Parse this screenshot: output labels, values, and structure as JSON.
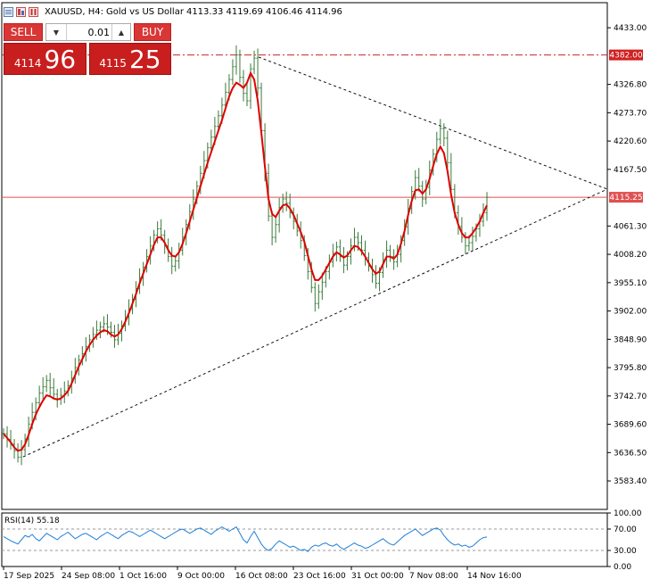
{
  "header": {
    "symbol": "XAUUSD, H4:",
    "description": "Gold vs US Dollar",
    "ohlc": "4113.33 4119.69 4106.46 4114.96"
  },
  "trade_panel": {
    "sell_label": "SELL",
    "buy_label": "BUY",
    "lot": "0.01",
    "sell_price_small": "4114",
    "sell_price_big": "96",
    "buy_price_small": "4115",
    "buy_price_big": "25"
  },
  "colors": {
    "candle": "#3a7a3a",
    "ma": "#e00000",
    "rsi": "#1e7fd9",
    "level": "#d02020",
    "sell_button": "#d93636",
    "price_box": "#c91e1e"
  },
  "chart_data": [
    {
      "type": "line",
      "title": "XAUUSD, H4: Gold vs US Dollar",
      "ylim": [
        3530,
        4480
      ],
      "y_ticks": [
        "4433.00",
        "4326.80",
        "4273.70",
        "4220.60",
        "4167.50",
        "4061.30",
        "4008.20",
        "3955.10",
        "3902.00",
        "3848.90",
        "3795.80",
        "3742.70",
        "3689.60",
        "3636.50",
        "3583.40"
      ],
      "x_ticks": [
        "17 Sep 2025",
        "24 Sep 08:00",
        "1 Oct 16:00",
        "9 Oct 00:00",
        "16 Oct 08:00",
        "23 Oct 16:00",
        "31 Oct 00:00",
        "7 Nov 08:00",
        "14 Nov 16:00"
      ],
      "current_price_label": "4115.25",
      "current_price": 4115.25,
      "resistance_label": "4382.00",
      "resistance": 4382.0,
      "series": [
        {
          "name": "",
          "style": "ohlc-bars",
          "values": [
            3672,
            3661,
            3652,
            3640,
            3628,
            3642,
            3662,
            3690,
            3712,
            3730,
            3748,
            3760,
            3772,
            3758,
            3746,
            3736,
            3744,
            3752,
            3762,
            3776,
            3796,
            3810,
            3822,
            3835,
            3848,
            3858,
            3866,
            3872,
            3878,
            3872,
            3862,
            3848,
            3860,
            3874,
            3890,
            3906,
            3924,
            3944,
            3964,
            3984,
            4004,
            4024,
            4044,
            4056,
            4044,
            4024,
            4004,
            3986,
            3996,
            4016,
            4040,
            4064,
            4088,
            4112,
            4136,
            4160,
            4184,
            4208,
            4228,
            4248,
            4268,
            4288,
            4312,
            4336,
            4360,
            4382,
            4340,
            4310,
            4296,
            4356,
            4376,
            4320,
            4240,
            4160,
            4080,
            4040,
            4064,
            4096,
            4112,
            4104,
            4086,
            4070,
            4052,
            4034,
            4006,
            3976,
            3946,
            3916,
            3938,
            3956,
            3976,
            3994,
            4010,
            4022,
            4004,
            3988,
            4004,
            4024,
            4040,
            4030,
            4016,
            4002,
            3986,
            3970,
            3954,
            3974,
            3998,
            4016,
            4004,
            3994,
            4008,
            4034,
            4060,
            4094,
            4126,
            4152,
            4136,
            4112,
            4134,
            4166,
            4196,
            4224,
            4244,
            4226,
            4180,
            4130,
            4086,
            4060,
            4040,
            4024,
            4030,
            4042,
            4056,
            4070,
            4086,
            4115
          ]
        },
        {
          "name": "",
          "style": "moving-average",
          "values": [
            3672,
            3664,
            3656,
            3646,
            3640,
            3642,
            3652,
            3670,
            3690,
            3708,
            3722,
            3734,
            3744,
            3742,
            3738,
            3736,
            3738,
            3744,
            3752,
            3766,
            3782,
            3798,
            3812,
            3826,
            3838,
            3848,
            3856,
            3862,
            3866,
            3864,
            3858,
            3854,
            3858,
            3868,
            3882,
            3898,
            3916,
            3934,
            3954,
            3972,
            3990,
            4008,
            4026,
            4040,
            4040,
            4030,
            4016,
            4006,
            4004,
            4012,
            4028,
            4048,
            4070,
            4092,
            4114,
            4136,
            4158,
            4180,
            4200,
            4220,
            4240,
            4260,
            4282,
            4304,
            4320,
            4330,
            4326,
            4320,
            4330,
            4348,
            4336,
            4296,
            4236,
            4172,
            4112,
            4084,
            4078,
            4090,
            4100,
            4102,
            4094,
            4082,
            4066,
            4050,
            4032,
            4006,
            3980,
            3960,
            3960,
            3968,
            3980,
            3992,
            4004,
            4012,
            4008,
            4002,
            4006,
            4016,
            4024,
            4022,
            4014,
            4004,
            3992,
            3980,
            3972,
            3976,
            3990,
            4004,
            4004,
            4000,
            4008,
            4028,
            4052,
            4082,
            4108,
            4128,
            4130,
            4122,
            4130,
            4150,
            4174,
            4196,
            4210,
            4198,
            4164,
            4120,
            4086,
            4064,
            4048,
            4040,
            4040,
            4048,
            4058,
            4070,
            4086,
            4100
          ]
        }
      ]
    },
    {
      "type": "line",
      "title": "RSI(14) 55.18",
      "ylim": [
        0,
        100
      ],
      "y_ticks": [
        "100.00",
        "70.00",
        "30.00",
        "0.00"
      ],
      "levels": [
        30,
        70
      ],
      "series": [
        {
          "name": "RSI(14)",
          "values": [
            56,
            52,
            48,
            45,
            42,
            50,
            58,
            55,
            60,
            52,
            48,
            55,
            62,
            58,
            54,
            50,
            56,
            60,
            64,
            58,
            52,
            56,
            60,
            62,
            58,
            54,
            50,
            56,
            60,
            64,
            60,
            56,
            52,
            58,
            62,
            66,
            64,
            60,
            56,
            60,
            64,
            68,
            64,
            60,
            56,
            52,
            56,
            60,
            64,
            68,
            70,
            66,
            62,
            66,
            70,
            72,
            68,
            64,
            60,
            66,
            70,
            74,
            70,
            66,
            70,
            74,
            62,
            50,
            44,
            56,
            66,
            54,
            42,
            34,
            30,
            34,
            42,
            48,
            44,
            40,
            36,
            38,
            34,
            30,
            32,
            28,
            36,
            40,
            38,
            42,
            44,
            40,
            38,
            42,
            36,
            32,
            36,
            40,
            44,
            40,
            38,
            34,
            36,
            40,
            44,
            48,
            52,
            46,
            42,
            40,
            46,
            52,
            58,
            62,
            66,
            70,
            64,
            58,
            62,
            66,
            70,
            72,
            68,
            58,
            50,
            44,
            40,
            42,
            38,
            40,
            36,
            38,
            44,
            50,
            54,
            55.18
          ]
        }
      ]
    }
  ]
}
